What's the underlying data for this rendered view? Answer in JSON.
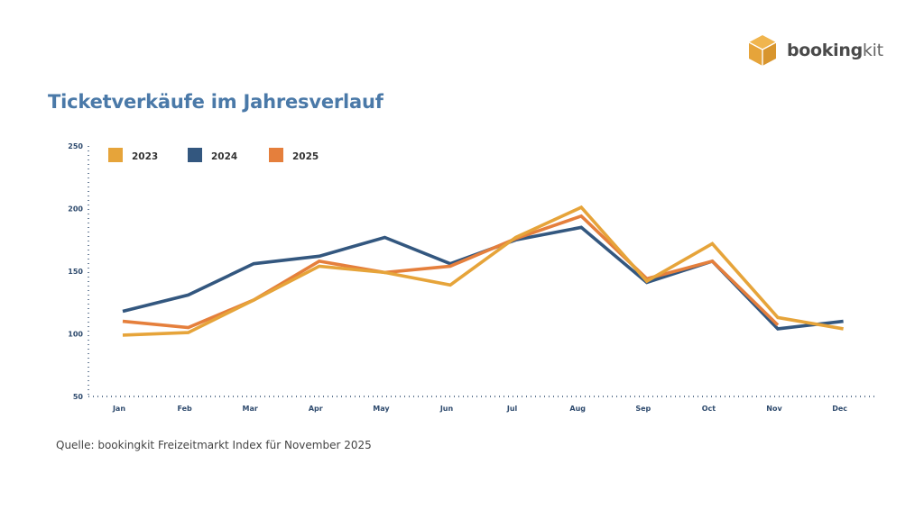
{
  "brand": {
    "name_bold": "booking",
    "name_light": "kit",
    "logo_color": "#e6a43a"
  },
  "title": "Ticketverkäufe im Jahresverlauf",
  "source": "Quelle: bookingkit Freizeitmarkt Index für November 2025",
  "chart_data": {
    "type": "line",
    "title": "Ticketverkäufe im Jahresverlauf",
    "xlabel": "",
    "ylabel": "",
    "categories": [
      "Jan",
      "Feb",
      "Mar",
      "Apr",
      "May",
      "Jun",
      "Jul",
      "Aug",
      "Sep",
      "Oct",
      "Nov",
      "Dec"
    ],
    "ylim": [
      50,
      250
    ],
    "yticks": [
      50,
      100,
      150,
      200,
      250
    ],
    "grid": false,
    "legend": "top-left",
    "series": [
      {
        "name": "2023",
        "color": "#e6a43a",
        "values": [
          99,
          101,
          127,
          154,
          149,
          139,
          177,
          201,
          142,
          172,
          113,
          104
        ]
      },
      {
        "name": "2024",
        "color": "#33577f",
        "values": [
          118,
          131,
          156,
          162,
          177,
          156,
          175,
          185,
          141,
          158,
          104,
          110
        ]
      },
      {
        "name": "2025",
        "color": "#e57f3c",
        "values": [
          110,
          105,
          127,
          158,
          149,
          154,
          176,
          194,
          144,
          158,
          107,
          null
        ]
      }
    ]
  }
}
